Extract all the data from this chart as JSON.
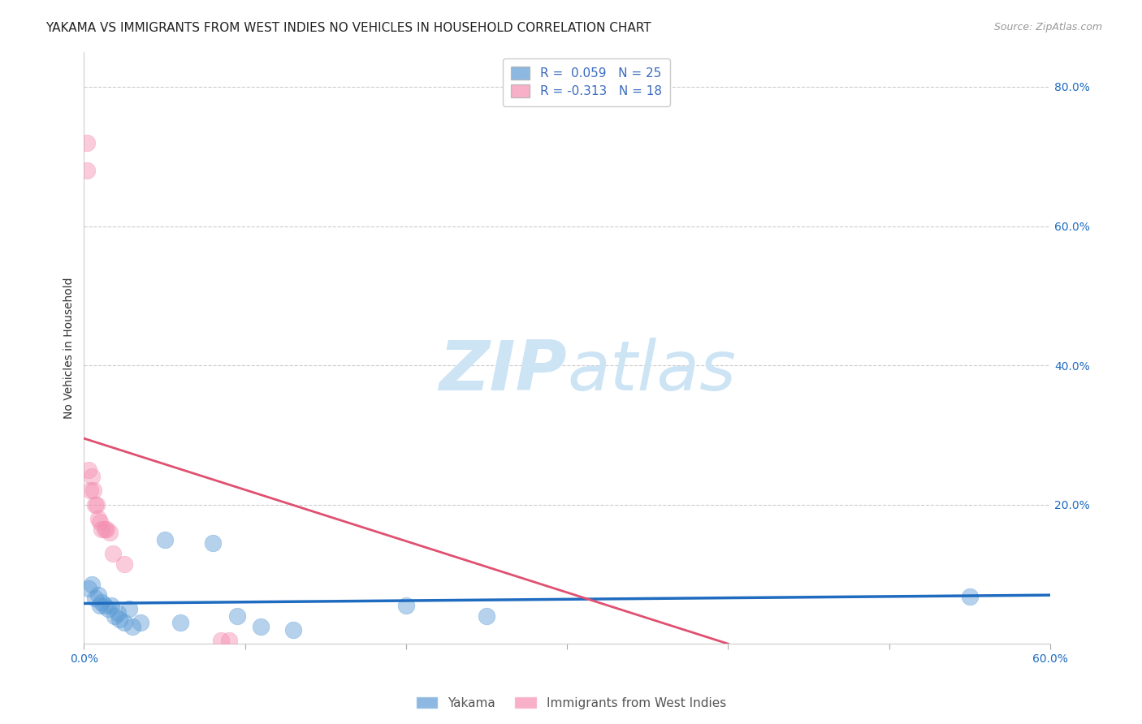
{
  "title": "YAKAMA VS IMMIGRANTS FROM WEST INDIES NO VEHICLES IN HOUSEHOLD CORRELATION CHART",
  "source": "Source: ZipAtlas.com",
  "ylabel": "No Vehicles in Household",
  "xlim": [
    0.0,
    0.6
  ],
  "ylim": [
    0.0,
    0.85
  ],
  "xticks": [
    0.0,
    0.1,
    0.2,
    0.3,
    0.4,
    0.5,
    0.6
  ],
  "xtick_labels": [
    "0.0%",
    "",
    "",
    "",
    "",
    "",
    "60.0%"
  ],
  "yticks_right": [
    0.0,
    0.2,
    0.4,
    0.6,
    0.8
  ],
  "ytick_right_labels": [
    "",
    "20.0%",
    "40.0%",
    "60.0%",
    "80.0%"
  ],
  "legend_entries": [
    {
      "label": "R =  0.059   N = 25",
      "color": "#7eb3e0"
    },
    {
      "label": "R = -0.313   N = 18",
      "color": "#f4a0b0"
    }
  ],
  "yakama_x": [
    0.003,
    0.005,
    0.007,
    0.009,
    0.01,
    0.011,
    0.013,
    0.015,
    0.017,
    0.019,
    0.021,
    0.022,
    0.025,
    0.028,
    0.03,
    0.035,
    0.05,
    0.06,
    0.08,
    0.095,
    0.11,
    0.13,
    0.2,
    0.25,
    0.55
  ],
  "yakama_y": [
    0.08,
    0.085,
    0.065,
    0.07,
    0.055,
    0.06,
    0.055,
    0.05,
    0.055,
    0.04,
    0.045,
    0.035,
    0.03,
    0.05,
    0.025,
    0.03,
    0.15,
    0.03,
    0.145,
    0.04,
    0.025,
    0.02,
    0.055,
    0.04,
    0.068
  ],
  "west_indies_x": [
    0.002,
    0.002,
    0.003,
    0.004,
    0.005,
    0.006,
    0.007,
    0.008,
    0.009,
    0.01,
    0.011,
    0.013,
    0.014,
    0.016,
    0.018,
    0.025,
    0.085,
    0.09
  ],
  "west_indies_y": [
    0.72,
    0.68,
    0.25,
    0.22,
    0.24,
    0.22,
    0.2,
    0.2,
    0.18,
    0.175,
    0.165,
    0.165,
    0.165,
    0.16,
    0.13,
    0.115,
    0.005,
    0.005
  ],
  "blue_line_x": [
    0.0,
    0.6
  ],
  "blue_line_y": [
    0.058,
    0.07
  ],
  "pink_line_x": [
    0.0,
    0.4
  ],
  "pink_line_y": [
    0.295,
    0.0
  ],
  "scatter_size": 220,
  "scatter_alpha": 0.45,
  "yakama_color": "#5b9bd5",
  "west_indies_color": "#f48fb1",
  "blue_line_color": "#1f6bbf",
  "pink_line_color": "#e05070",
  "background_color": "#ffffff",
  "watermark_zip": "ZIP",
  "watermark_atlas": "atlas",
  "watermark_color": "#cde4f5",
  "grid_color": "#cccccc",
  "title_fontsize": 11,
  "axis_label_fontsize": 10,
  "tick_fontsize": 10,
  "legend_fontsize": 11
}
